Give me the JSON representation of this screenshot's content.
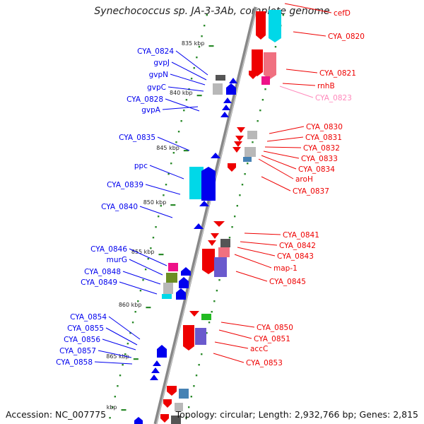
{
  "title": "Synechococcus sp. JA-3-3Ab, complete genome",
  "footer": {
    "accession": "Accession: NC_007775",
    "topology": "Topology: circular; Length: 2,932,766 bp; Genes: 2,815"
  },
  "colors": {
    "forward_strand": "#0000ee",
    "reverse_strand": "#ee0000",
    "cds_cyan": "#00d8e8",
    "cds_pink": "#f07080",
    "cds_magenta": "#ee1188",
    "cds_olive": "#6b8e23",
    "cds_gray": "#b8b8b8",
    "cds_dark": "#555555",
    "cds_steel": "#4682b4",
    "cds_green": "#22bb22",
    "cds_purple": "#6a5acd",
    "ruler": "#2a8a2a",
    "backbone": "#888888",
    "label_pink": "#ff88bb"
  },
  "scale_labels": [
    "835 kbp",
    "840 kbp",
    "845 kbp",
    "850 kbp",
    "855 kbp",
    "860 kbp",
    "865 kbp",
    "kbp"
  ],
  "forward_genes": [
    "CYA_0824",
    "gvpJ",
    "gvpN",
    "gvpC",
    "CYA_0828",
    "gvpA",
    "CYA_0835",
    "ppc",
    "CYA_0839",
    "CYA_0840",
    "CYA_0846",
    "murG",
    "CYA_0848",
    "CYA_0849",
    "CYA_0854",
    "CYA_0855",
    "CYA_0856",
    "CYA_0857",
    "CYA_0858"
  ],
  "reverse_genes": [
    "cefD",
    "CYA_0820",
    "CYA_0821",
    "rnhB",
    "CYA_0823",
    "CYA_0830",
    "CYA_0831",
    "CYA_0832",
    "CYA_0833",
    "CYA_0834",
    "aroH",
    "CYA_0837",
    "CYA_0841",
    "CYA_0842",
    "CYA_0843",
    "map-1",
    "CYA_0845",
    "CYA_0850",
    "CYA_0851",
    "accC",
    "CYA_0853"
  ]
}
